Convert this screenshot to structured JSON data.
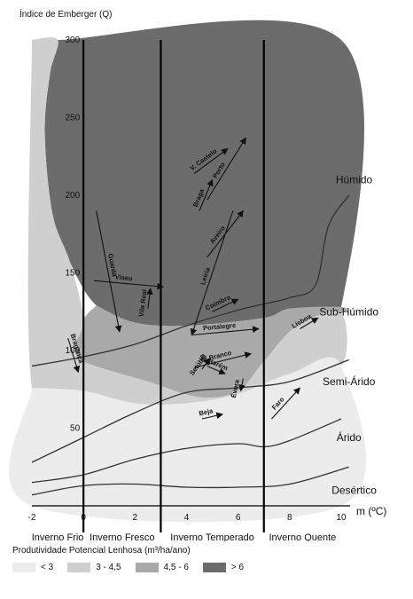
{
  "chart_data": {
    "type": "area",
    "title": "",
    "ylabel": "Índice de Emberger (Q)",
    "xlabel": "m (ºC)",
    "xlim": [
      -2,
      10
    ],
    "ylim": [
      0,
      300
    ],
    "x_ticks": [
      -2,
      0,
      2,
      4,
      6,
      8,
      10
    ],
    "y_ticks": [
      50,
      100,
      150,
      200,
      250,
      300
    ],
    "winter_dividers": [
      0,
      3,
      7
    ],
    "winter_zones": [
      {
        "label": "Inverno Frio",
        "x": [
          -2,
          0
        ]
      },
      {
        "label": "Inverno Fresco",
        "x": [
          0,
          3
        ]
      },
      {
        "label": "Inverno Temperado",
        "x": [
          3,
          7
        ]
      },
      {
        "label": "Inverno Quente",
        "x": [
          7,
          10
        ]
      }
    ],
    "bioclimate_labels": [
      {
        "label": "Húmido",
        "x": 10.5,
        "y": 210
      },
      {
        "label": "Sub-Húmido",
        "x": 10.3,
        "y": 125
      },
      {
        "label": "Semi-Árido",
        "x": 10.3,
        "y": 80
      },
      {
        "label": "Árido",
        "x": 10.3,
        "y": 44
      },
      {
        "label": "Desértico",
        "x": 10.5,
        "y": 10
      }
    ],
    "boundary_curves": [
      {
        "name": "humido",
        "points": [
          [
            -2,
            90
          ],
          [
            0,
            96
          ],
          [
            2,
            104
          ],
          [
            4,
            116
          ],
          [
            6,
            126
          ],
          [
            7,
            130
          ],
          [
            8,
            134
          ],
          [
            9,
            142
          ],
          [
            9.5,
            180
          ],
          [
            10.3,
            200
          ]
        ]
      },
      {
        "name": "sub-humido",
        "points": [
          [
            -2,
            28
          ],
          [
            0,
            44
          ],
          [
            2,
            60
          ],
          [
            4,
            73
          ],
          [
            6,
            76
          ],
          [
            8,
            80
          ],
          [
            10.3,
            94
          ]
        ]
      },
      {
        "name": "semi-arido",
        "points": [
          [
            -2,
            15
          ],
          [
            0,
            20
          ],
          [
            2,
            30
          ],
          [
            4,
            37
          ],
          [
            6,
            40
          ],
          [
            7,
            38
          ],
          [
            8,
            42
          ],
          [
            10,
            56
          ]
        ]
      },
      {
        "name": "arido",
        "points": [
          [
            -2,
            7
          ],
          [
            0,
            13
          ],
          [
            2,
            14
          ],
          [
            4,
            12
          ],
          [
            6,
            12
          ],
          [
            8,
            14
          ],
          [
            10.3,
            25
          ]
        ]
      }
    ],
    "productivity_regions": [
      {
        "class": "> 6",
        "color": "#6c6c6c",
        "points": [
          [
            -1,
            300
          ],
          [
            10,
            300
          ],
          [
            10,
            128
          ],
          [
            8,
            127
          ],
          [
            7,
            121
          ],
          [
            4,
            116
          ],
          [
            2,
            118
          ],
          [
            0.5,
            129
          ],
          [
            -0.5,
            156
          ],
          [
            -1.2,
            188
          ],
          [
            -1.5,
            240
          ],
          [
            -1.3,
            278
          ]
        ]
      },
      {
        "class": "4,5 - 6",
        "color": "#a9a9a9",
        "points": [
          [
            0.5,
            129
          ],
          [
            2,
            118
          ],
          [
            4,
            116
          ],
          [
            7,
            121
          ],
          [
            8,
            127
          ],
          [
            10,
            128
          ],
          [
            10,
            124
          ],
          [
            8.3,
            116
          ],
          [
            7,
            93
          ],
          [
            6,
            74
          ],
          [
            4.5,
            70
          ],
          [
            2.5,
            80
          ],
          [
            0,
            93
          ],
          [
            -0.3,
            104
          ],
          [
            0,
            120
          ]
        ]
      },
      {
        "class": "3 - 4,5",
        "color": "#cfcfcf",
        "points": [
          [
            -2,
            300
          ],
          [
            -1,
            300
          ],
          [
            -1.3,
            278
          ],
          [
            -1.5,
            240
          ],
          [
            -1.2,
            188
          ],
          [
            -0.5,
            156
          ],
          [
            0,
            120
          ],
          [
            -0.3,
            104
          ],
          [
            0,
            93
          ],
          [
            2.5,
            80
          ],
          [
            4.5,
            70
          ],
          [
            6,
            74
          ],
          [
            7,
            93
          ],
          [
            8.3,
            116
          ],
          [
            10,
            124
          ],
          [
            10,
            90
          ],
          [
            8,
            85
          ],
          [
            6,
            72
          ],
          [
            4,
            66
          ],
          [
            2,
            66
          ],
          [
            0,
            74
          ],
          [
            -2,
            76
          ]
        ]
      },
      {
        "class": "< 3",
        "color": "#ececec",
        "points": [
          [
            -2,
            76
          ],
          [
            0,
            74
          ],
          [
            2,
            66
          ],
          [
            4,
            66
          ],
          [
            6,
            72
          ],
          [
            8,
            85
          ],
          [
            10,
            90
          ],
          [
            10,
            0
          ],
          [
            -2,
            0
          ]
        ]
      }
    ],
    "stations": [
      {
        "name": "Viseu",
        "from": [
          0.4,
          145
        ],
        "to": [
          3.1,
          141
        ]
      },
      {
        "name": "Guarda",
        "from": [
          0.5,
          190
        ],
        "to": [
          1.4,
          112
        ]
      },
      {
        "name": "Vila Real",
        "from": [
          2.5,
          127
        ],
        "to": [
          2.6,
          140
        ]
      },
      {
        "name": "Bragança",
        "from": [
          -0.6,
          108
        ],
        "to": [
          -0.2,
          86
        ]
      },
      {
        "name": "V. Castelo",
        "from": [
          4.3,
          214
        ],
        "to": [
          5.6,
          230
        ]
      },
      {
        "name": "Braga",
        "from": [
          4.5,
          190
        ],
        "to": [
          5.0,
          210
        ]
      },
      {
        "name": "Porto",
        "from": [
          4.8,
          197
        ],
        "to": [
          6.3,
          237
        ]
      },
      {
        "name": "Aveiro",
        "from": [
          4.8,
          160
        ],
        "to": [
          6.2,
          190
        ]
      },
      {
        "name": "Leiria",
        "from": [
          5.8,
          190
        ],
        "to": [
          4.2,
          110
        ]
      },
      {
        "name": "Coimbra",
        "from": [
          5.0,
          125
        ],
        "to": [
          6.0,
          133
        ]
      },
      {
        "name": "Portalegre",
        "from": [
          4.2,
          110
        ],
        "to": [
          6.8,
          114
        ]
      },
      {
        "name": "C. Branco",
        "from": [
          4.3,
          89
        ],
        "to": [
          6.5,
          98
        ]
      },
      {
        "name": "Setúbal",
        "from": [
          4.6,
          88
        ],
        "to": [
          4.9,
          95
        ]
      },
      {
        "name": "Santarém",
        "from": [
          4.8,
          90
        ],
        "to": [
          5.5,
          85
        ]
      },
      {
        "name": "Évora",
        "from": [
          6.2,
          82
        ],
        "to": [
          6.1,
          74
        ]
      },
      {
        "name": "Lisboa",
        "from": [
          8.4,
          114
        ],
        "to": [
          9.1,
          121
        ]
      },
      {
        "name": "Faro",
        "from": [
          7.3,
          56
        ],
        "to": [
          8.4,
          76
        ]
      },
      {
        "name": "Beja",
        "from": [
          4.6,
          56
        ],
        "to": [
          5.4,
          59
        ]
      }
    ],
    "legend": {
      "title": "Produtividade Potencial Lenhosa (m³/ha/ano)",
      "placement": "bottom",
      "items": [
        {
          "label": "< 3",
          "color": "#ececec"
        },
        {
          "label": "3 - 4,5",
          "color": "#cfcfcf"
        },
        {
          "label": "4,5 - 6",
          "color": "#a9a9a9"
        },
        {
          "label": "> 6",
          "color": "#6c6c6c"
        }
      ]
    }
  }
}
